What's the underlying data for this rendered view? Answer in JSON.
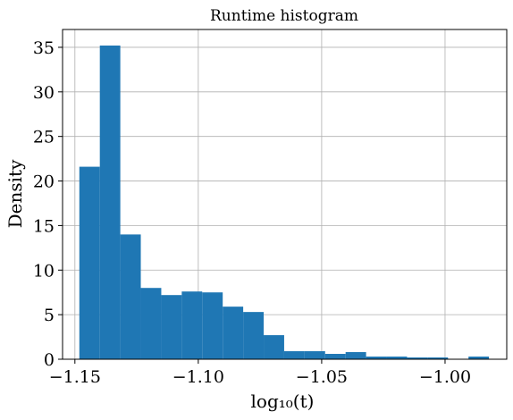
{
  "chart_data": {
    "type": "histogram",
    "title": "Runtime histogram",
    "xlabel": "log₁₀(t)",
    "ylabel": "Density",
    "xlim": [
      -1.155,
      -0.975
    ],
    "ylim": [
      0,
      37
    ],
    "grid": true,
    "color": "#1f77b4",
    "x_ticks": [
      -1.15,
      -1.1,
      -1.05,
      -1.0
    ],
    "x_tick_labels": [
      "−1.15",
      "−1.10",
      "−1.05",
      "−1.00"
    ],
    "y_ticks": [
      0,
      5,
      10,
      15,
      20,
      25,
      30,
      35
    ],
    "y_tick_labels": [
      "0",
      "5",
      "10",
      "15",
      "20",
      "25",
      "30",
      "35"
    ],
    "bins": [
      {
        "x0": -1.1482,
        "x1": -1.1399,
        "density": 21.6
      },
      {
        "x0": -1.1399,
        "x1": -1.1316,
        "density": 35.2
      },
      {
        "x0": -1.1316,
        "x1": -1.1233,
        "density": 14.0
      },
      {
        "x0": -1.1233,
        "x1": -1.115,
        "density": 8.0
      },
      {
        "x0": -1.115,
        "x1": -1.1067,
        "density": 7.2
      },
      {
        "x0": -1.1067,
        "x1": -1.0984,
        "density": 7.6
      },
      {
        "x0": -1.0984,
        "x1": -1.0901,
        "density": 7.5
      },
      {
        "x0": -1.0901,
        "x1": -1.0818,
        "density": 5.9
      },
      {
        "x0": -1.0818,
        "x1": -1.0735,
        "density": 5.3
      },
      {
        "x0": -1.0735,
        "x1": -1.0652,
        "density": 2.7
      },
      {
        "x0": -1.0652,
        "x1": -1.0569,
        "density": 0.9
      },
      {
        "x0": -1.0569,
        "x1": -1.0486,
        "density": 0.9
      },
      {
        "x0": -1.0486,
        "x1": -1.0403,
        "density": 0.6
      },
      {
        "x0": -1.0403,
        "x1": -1.032,
        "density": 0.8
      },
      {
        "x0": -1.032,
        "x1": -1.0237,
        "density": 0.3
      },
      {
        "x0": -1.0237,
        "x1": -1.0154,
        "density": 0.3
      },
      {
        "x0": -1.0154,
        "x1": -1.0071,
        "density": 0.2
      },
      {
        "x0": -1.0071,
        "x1": -0.9988,
        "density": 0.2
      },
      {
        "x0": -0.9988,
        "x1": -0.9905,
        "density": 0.0
      },
      {
        "x0": -0.9905,
        "x1": -0.9822,
        "density": 0.3
      }
    ]
  }
}
